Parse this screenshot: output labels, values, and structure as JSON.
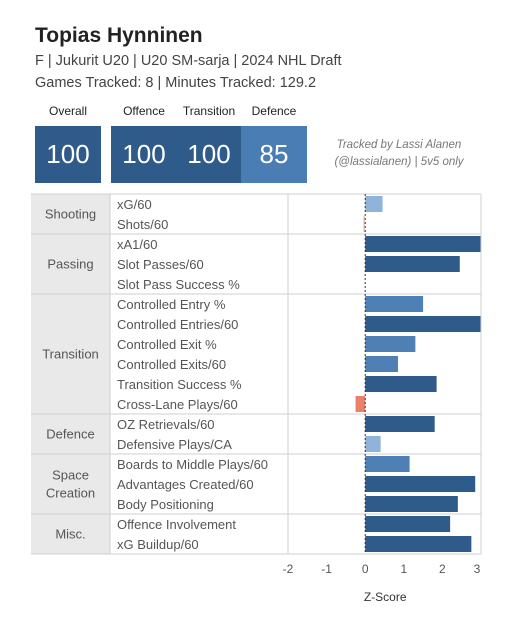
{
  "header": {
    "title": "Topias Hynninen",
    "subtitle": "F | Jukurit U20 | U20 SM-sarja | 2024 NHL Draft",
    "subtitle2": "Games Tracked: 8 | Minutes Tracked: 129.2"
  },
  "scores": [
    {
      "label": "Overall",
      "value": "100",
      "color": "#2f5b8a"
    },
    {
      "label": "Offence",
      "value": "100",
      "color": "#2f5b8a"
    },
    {
      "label": "Transition",
      "value": "100",
      "color": "#2f5b8a"
    },
    {
      "label": "Defence",
      "value": "85",
      "color": "#4a7db3"
    }
  ],
  "tracked_note": {
    "line1": "Tracked by Lassi Alanen",
    "line2": "(@lassialanen) | 5v5 only"
  },
  "colors": {
    "dark_blue": "#2f5b8a",
    "mid_blue": "#4e7fb5",
    "light_blue": "#8fb3d9",
    "pale_pink": "#f3c9c3",
    "salmon": "#e8806b",
    "category_bg": "#e9e9e9"
  },
  "chart_data": {
    "type": "bar",
    "orientation": "horizontal",
    "xlabel": "Z-Score",
    "xlim": [
      -2,
      3
    ],
    "xticks": [
      "-2",
      "-1",
      "0",
      "1",
      "2",
      "3"
    ],
    "groups": [
      {
        "name": "Shooting",
        "metrics": [
          {
            "label": "xG/60",
            "value": 0.45
          },
          {
            "label": "Shots/60",
            "value": -0.05
          }
        ]
      },
      {
        "name": "Passing",
        "metrics": [
          {
            "label": "xA1/60",
            "value": 3.0
          },
          {
            "label": "Slot Passes/60",
            "value": 2.45
          },
          {
            "label": "Slot Pass Success %",
            "value": 0.0
          }
        ]
      },
      {
        "name": "Transition",
        "metrics": [
          {
            "label": "Controlled Entry %",
            "value": 1.5
          },
          {
            "label": "Controlled Entries/60",
            "value": 3.0
          },
          {
            "label": "Controlled Exit %",
            "value": 1.3
          },
          {
            "label": "Controlled Exits/60",
            "value": 0.85
          },
          {
            "label": "Transition Success %",
            "value": 1.85
          },
          {
            "label": "Cross-Lane Plays/60",
            "value": -0.25
          }
        ]
      },
      {
        "name": "Defence",
        "metrics": [
          {
            "label": "OZ Retrievals/60",
            "value": 1.8
          },
          {
            "label": "Defensive Plays/CA",
            "value": 0.4
          }
        ]
      },
      {
        "name": "Space Creation",
        "metrics": [
          {
            "label": "Boards to Middle Plays/60",
            "value": 1.15
          },
          {
            "label": "Advantages Created/60",
            "value": 2.85
          },
          {
            "label": "Body Positioning",
            "value": 2.4
          }
        ]
      },
      {
        "name": "Misc.",
        "metrics": [
          {
            "label": "Offence Involvement",
            "value": 2.2
          },
          {
            "label": "xG Buildup/60",
            "value": 2.75
          }
        ]
      }
    ]
  }
}
